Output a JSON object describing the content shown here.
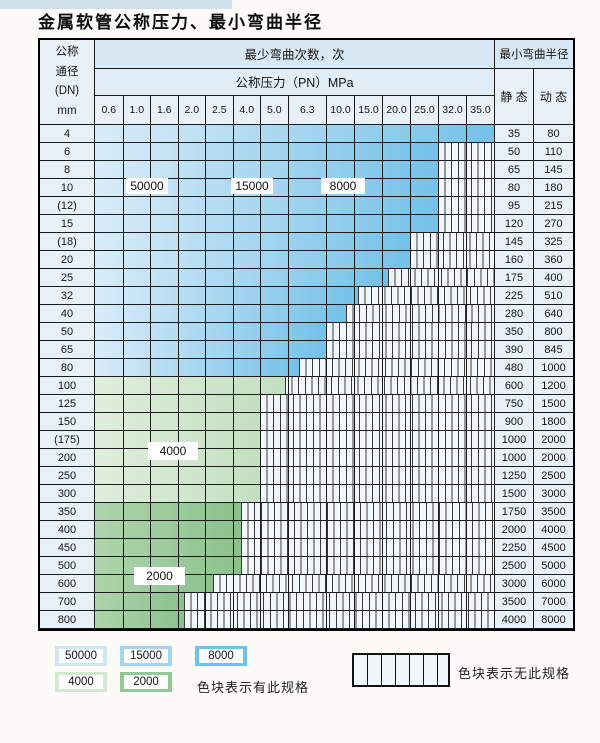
{
  "page": {
    "title": "金属软管公称压力、最小弯曲半径"
  },
  "table": {
    "corner": {
      "lines": [
        "公称",
        "通径",
        "(DN)",
        "mm"
      ]
    },
    "bend_cycles_title": "最少弯曲次数，次",
    "pressure_title": "公称压力（PN）MPa",
    "radius_title": "最小弯曲半径",
    "static_label": "静 态",
    "dynamic_label": "动 态",
    "pressure_columns": [
      "0.6",
      "1.0",
      "1.6",
      "2.0",
      "2.5",
      "4.0",
      "5.0",
      "6.3",
      "10.0",
      "15.0",
      "20.0",
      "25.0",
      "32.0",
      "35.0"
    ],
    "zone_labels": [
      {
        "id": "z50000",
        "text": "50000"
      },
      {
        "id": "z15000",
        "text": "15000"
      },
      {
        "id": "z8000",
        "text": "8000"
      },
      {
        "id": "z4000",
        "text": "4000"
      },
      {
        "id": "z2000",
        "text": "2000"
      }
    ],
    "rows": [
      {
        "dn": "4",
        "zone": "b",
        "colored_cols": 14,
        "spec_through": "35.0",
        "static": "35",
        "dynamic": "80"
      },
      {
        "dn": "6",
        "zone": "b",
        "colored_cols": 12,
        "spec_through": "25.0",
        "static": "50",
        "dynamic": "110"
      },
      {
        "dn": "8",
        "zone": "b",
        "colored_cols": 12,
        "spec_through": "25.0",
        "static": "65",
        "dynamic": "145"
      },
      {
        "dn": "10",
        "zone": "b",
        "colored_cols": 12,
        "spec_through": "25.0",
        "static": "80",
        "dynamic": "180"
      },
      {
        "dn": "(12)",
        "zone": "b",
        "colored_cols": 12,
        "spec_through": "25.0",
        "static": "95",
        "dynamic": "215"
      },
      {
        "dn": "15",
        "zone": "b",
        "colored_cols": 12,
        "spec_through": "25.0",
        "static": "120",
        "dynamic": "270"
      },
      {
        "dn": "(18)",
        "zone": "b",
        "colored_cols": 11,
        "spec_through": "20.0",
        "static": "145",
        "dynamic": "325"
      },
      {
        "dn": "20",
        "zone": "b",
        "colored_cols": 11,
        "spec_through": "20.0",
        "static": "160",
        "dynamic": "360"
      },
      {
        "dn": "25",
        "zone": "b",
        "colored_cols": 10.2,
        "spec_through": "15.0",
        "static": "175",
        "dynamic": "400"
      },
      {
        "dn": "32",
        "zone": "b",
        "colored_cols": 9.15,
        "spec_through": "10.0",
        "static": "225",
        "dynamic": "510"
      },
      {
        "dn": "40",
        "zone": "b",
        "colored_cols": 8.7,
        "spec_through": "10.0",
        "static": "280",
        "dynamic": "640"
      },
      {
        "dn": "50",
        "zone": "b",
        "colored_cols": 8,
        "spec_through": "6.3",
        "static": "350",
        "dynamic": "800"
      },
      {
        "dn": "65",
        "zone": "b",
        "colored_cols": 8,
        "spec_through": "6.3",
        "static": "390",
        "dynamic": "845"
      },
      {
        "dn": "80",
        "zone": "b",
        "colored_cols": 7.3,
        "spec_through": "5.0",
        "static": "480",
        "dynamic": "1000"
      },
      {
        "dn": "100",
        "zone": "g4",
        "colored_cols": 6.9,
        "spec_through": "5.0",
        "static": "600",
        "dynamic": "1200"
      },
      {
        "dn": "125",
        "zone": "g4",
        "colored_cols": 6,
        "spec_through": "4.0",
        "static": "750",
        "dynamic": "1500"
      },
      {
        "dn": "150",
        "zone": "g4",
        "colored_cols": 6,
        "spec_through": "4.0",
        "static": "900",
        "dynamic": "1800"
      },
      {
        "dn": "(175)",
        "zone": "g4",
        "colored_cols": 6,
        "spec_through": "4.0",
        "static": "1000",
        "dynamic": "2000"
      },
      {
        "dn": "200",
        "zone": "g4",
        "colored_cols": 6,
        "spec_through": "4.0",
        "static": "1000",
        "dynamic": "2000"
      },
      {
        "dn": "250",
        "zone": "g4",
        "colored_cols": 6,
        "spec_through": "4.0",
        "static": "1250",
        "dynamic": "2500"
      },
      {
        "dn": "300",
        "zone": "g4",
        "colored_cols": 6,
        "spec_through": "4.0",
        "static": "1500",
        "dynamic": "3000"
      },
      {
        "dn": "350",
        "zone": "g2",
        "colored_cols": 5.3,
        "spec_through": "2.5",
        "static": "1750",
        "dynamic": "3500"
      },
      {
        "dn": "400",
        "zone": "g2",
        "colored_cols": 5.3,
        "spec_through": "2.5",
        "static": "2000",
        "dynamic": "4000"
      },
      {
        "dn": "450",
        "zone": "g2",
        "colored_cols": 5.3,
        "spec_through": "2.5",
        "static": "2250",
        "dynamic": "4500"
      },
      {
        "dn": "500",
        "zone": "g2",
        "colored_cols": 5.3,
        "spec_through": "2.5",
        "static": "2500",
        "dynamic": "5000"
      },
      {
        "dn": "600",
        "zone": "g2",
        "colored_cols": 4.3,
        "spec_through": "2.0",
        "static": "3000",
        "dynamic": "6000"
      },
      {
        "dn": "700",
        "zone": "g2",
        "colored_cols": 3.25,
        "spec_through": "1.6",
        "static": "3500",
        "dynamic": "7000"
      },
      {
        "dn": "800",
        "zone": "g2",
        "colored_cols": 3.25,
        "spec_through": "1.6",
        "static": "4000",
        "dynamic": "8000"
      }
    ]
  },
  "legend": {
    "has_spec_swatches": [
      {
        "label": "50000",
        "color": "#cfe6f4"
      },
      {
        "label": "15000",
        "color": "#a5d4ee"
      },
      {
        "label": "8000",
        "color": "#6ec1e9"
      },
      {
        "label": "4000",
        "color": "#d5e8d2"
      },
      {
        "label": "2000",
        "color": "#94c897"
      }
    ],
    "has_spec_text": "色块表示有此规格",
    "no_spec_text": "色块表示无此规格"
  },
  "colors": {
    "top_strip": "#cde0ec",
    "header_bg": "#d8e8f4",
    "header_bg2": "#e0edf7",
    "cell_bg": "#e9f1f8",
    "grid": "#1c1c1c",
    "blue_start": "#d9ecf8",
    "blue_end": "#74c1e8",
    "green4000_start": "#e0eedd",
    "green4000_end": "#c3dfc0",
    "green2000_start": "#aed4ab",
    "green2000_end": "#8ac28c",
    "hatch_bg": "#f1f6fa"
  }
}
